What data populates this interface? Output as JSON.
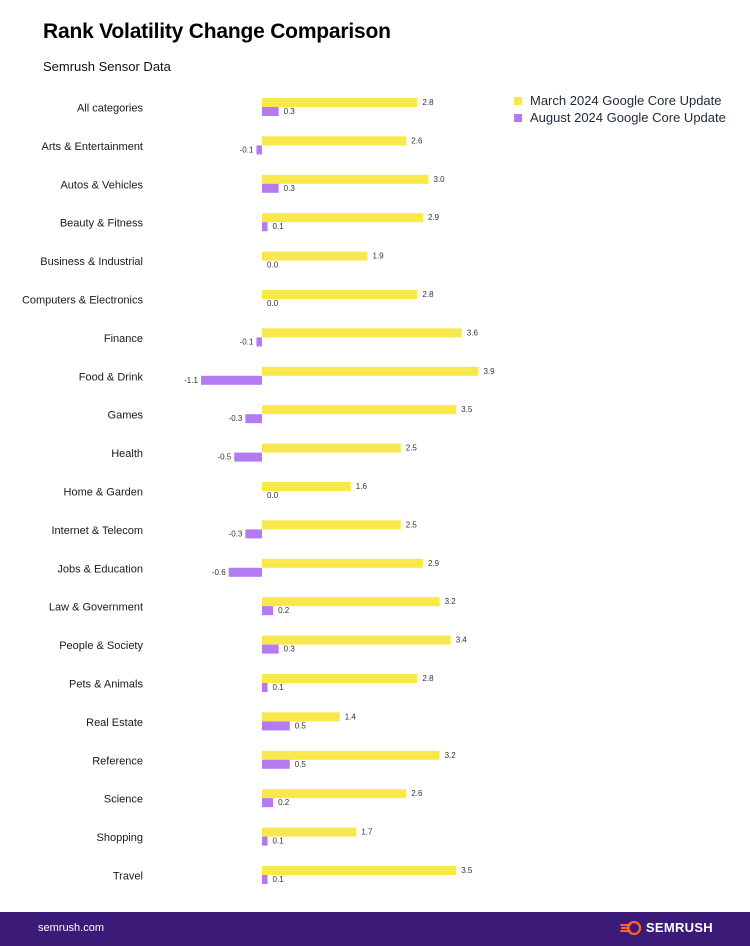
{
  "header": {
    "title": "Rank Volatility Change Comparison",
    "subtitle": "Semrush Sensor Data"
  },
  "footer": {
    "url": "semrush.com",
    "brand": "SEMRUSH",
    "background_color": "#3c1a78"
  },
  "chart_data": {
    "type": "bar",
    "orientation": "horizontal",
    "categories": [
      "All categories",
      "Arts & Entertainment",
      "Autos & Vehicles",
      "Beauty & Fitness",
      "Business & Industrial",
      "Computers & Electronics",
      "Finance",
      "Food & Drink",
      "Games",
      "Health",
      "Home & Garden",
      "Internet & Telecom",
      "Jobs & Education",
      "Law & Government",
      "People & Society",
      "Pets & Animals",
      "Real Estate",
      "Reference",
      "Science",
      "Shopping",
      "Travel"
    ],
    "series": [
      {
        "name": "March 2024 Google Core Update",
        "color": "#f9e84a",
        "values": [
          2.8,
          2.6,
          3.0,
          2.9,
          1.9,
          2.8,
          3.6,
          3.9,
          3.5,
          2.5,
          1.6,
          2.5,
          2.9,
          3.2,
          3.4,
          2.8,
          1.4,
          3.2,
          2.6,
          1.7,
          3.5
        ]
      },
      {
        "name": "August 2024 Google Core Update",
        "color": "#b57af0",
        "values": [
          0.3,
          -0.1,
          0.3,
          0.1,
          0.0,
          0.0,
          -0.1,
          -1.1,
          -0.3,
          -0.5,
          0.0,
          -0.3,
          -0.6,
          0.2,
          0.3,
          0.1,
          0.5,
          0.5,
          0.2,
          0.1,
          0.1
        ]
      }
    ],
    "title": "Rank Volatility Change Comparison",
    "subtitle": "Semrush Sensor Data",
    "legend_position": "top-right",
    "grid": false,
    "xlim": [
      -1.1,
      3.9
    ]
  }
}
